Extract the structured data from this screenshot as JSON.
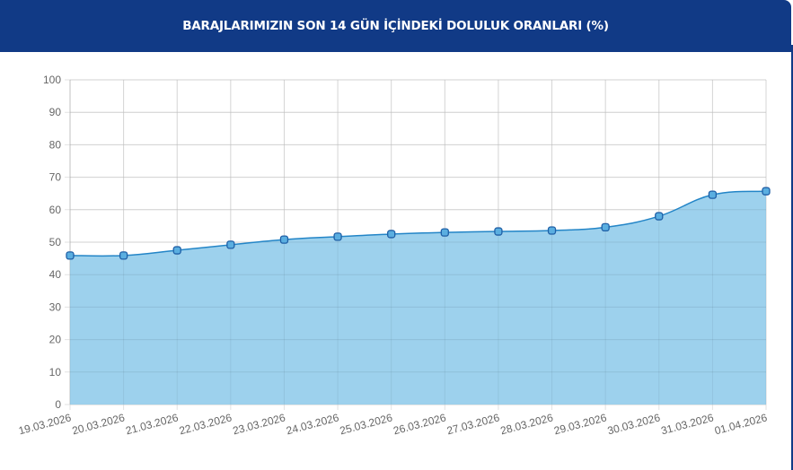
{
  "header": {
    "title": "BARAJLARIMIZIN SON 14 GÜN İÇİNDEKİ DOLULUK ORANLARI (%)"
  },
  "colors": {
    "header_bg": "#113a86",
    "area_fill": "#98cfec",
    "line": "#2385c7",
    "point_fill": "#5aaee0",
    "point_stroke": "#1f5fa6",
    "grid": "#e2e2e2",
    "tick_text": "#666666"
  },
  "chart_data": {
    "type": "area",
    "title": "BARAJLARIMIZIN SON 14 GÜN İÇİNDEKİ DOLULUK ORANLARI (%)",
    "xlabel": "",
    "ylabel": "",
    "ylim": [
      0,
      100
    ],
    "yticks": [
      0,
      10,
      20,
      30,
      40,
      50,
      60,
      70,
      80,
      90,
      100
    ],
    "grid": true,
    "legend": null,
    "categories": [
      "19.03.2026",
      "20.03.2026",
      "21.03.2026",
      "22.03.2026",
      "23.03.2026",
      "24.03.2026",
      "25.03.2026",
      "26.03.2026",
      "27.03.2026",
      "28.03.2026",
      "29.03.2026",
      "30.03.2026",
      "31.03.2026",
      "01.04.2026"
    ],
    "values": [
      45.9,
      45.9,
      47.5,
      49.2,
      50.8,
      51.7,
      52.5,
      53.0,
      53.3,
      53.6,
      54.6,
      58.0,
      64.6,
      65.7
    ]
  }
}
